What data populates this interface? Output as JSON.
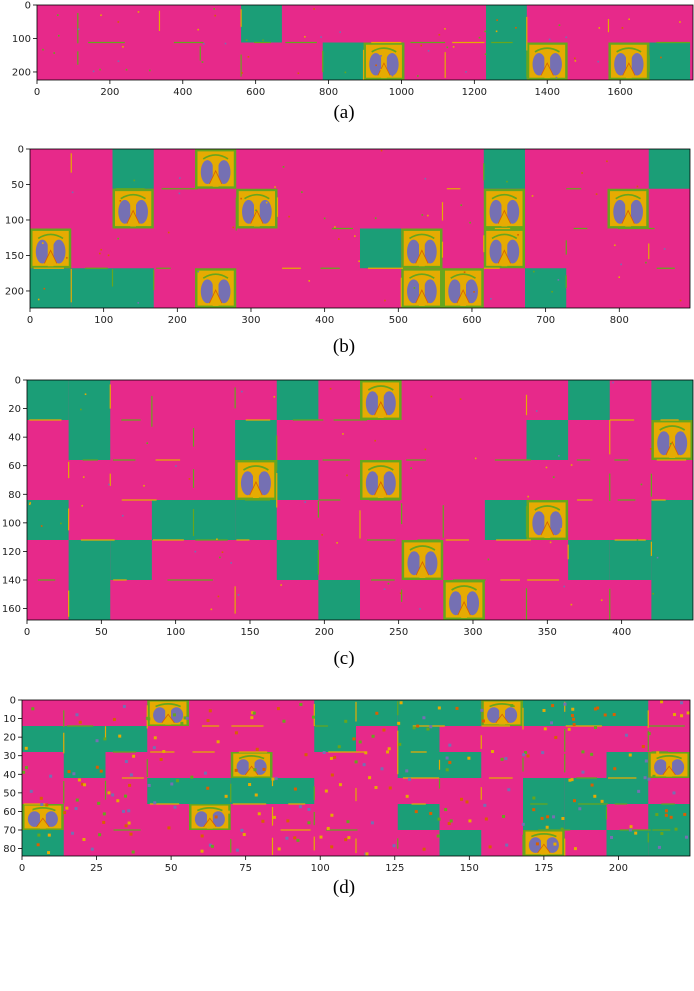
{
  "colors": {
    "background_pink": "#e7298a",
    "teal": "#1b9e77",
    "yellow": "#e6ab02",
    "green": "#66a61e",
    "purple": "#7570b3",
    "orange": "#d95f02"
  },
  "panels": [
    {
      "id": "a",
      "caption": "(a)",
      "xlim": [
        0,
        1800
      ],
      "ylim": [
        0,
        224
      ],
      "x_ticks": [
        0,
        200,
        400,
        600,
        800,
        1000,
        1200,
        1400,
        1600
      ],
      "y_ticks": [
        0,
        100,
        200
      ],
      "x_tick_labels": [
        "0",
        "200",
        "400",
        "600",
        "800",
        "1000",
        "1200",
        "1400",
        "1600"
      ],
      "y_tick_labels": [
        "0",
        "100",
        "200"
      ],
      "cell": [
        112,
        112
      ],
      "grid_cols": 16,
      "grid_rows": 2,
      "teal_cells": [
        [
          5,
          0
        ],
        [
          7,
          1
        ],
        [
          8,
          1
        ],
        [
          11,
          0
        ],
        [
          11,
          1
        ],
        [
          15,
          1
        ]
      ],
      "xray_cells": [
        [
          8,
          1
        ],
        [
          12,
          1
        ],
        [
          14,
          1
        ]
      ]
    },
    {
      "id": "b",
      "caption": "(b)",
      "xlim": [
        0,
        896
      ],
      "ylim": [
        0,
        224
      ],
      "x_ticks": [
        0,
        100,
        200,
        300,
        400,
        500,
        600,
        700,
        800
      ],
      "y_ticks": [
        0,
        50,
        100,
        150,
        200
      ],
      "x_tick_labels": [
        "0",
        "100",
        "200",
        "300",
        "400",
        "500",
        "600",
        "700",
        "800"
      ],
      "y_tick_labels": [
        "0",
        "50",
        "100",
        "150",
        "200"
      ],
      "cell": [
        56,
        56
      ],
      "grid_cols": 16,
      "grid_rows": 4,
      "teal_cells": [
        [
          2,
          0
        ],
        [
          11,
          0
        ],
        [
          15,
          0
        ],
        [
          8,
          2
        ],
        [
          0,
          3
        ],
        [
          1,
          3
        ],
        [
          2,
          3
        ],
        [
          12,
          3
        ]
      ],
      "xray_cells": [
        [
          4,
          0
        ],
        [
          2,
          1
        ],
        [
          5,
          1
        ],
        [
          11,
          1
        ],
        [
          14,
          1
        ],
        [
          0,
          2
        ],
        [
          9,
          2
        ],
        [
          11,
          2
        ],
        [
          4,
          3
        ],
        [
          9,
          3
        ],
        [
          10,
          3
        ]
      ]
    },
    {
      "id": "c",
      "caption": "(c)",
      "xlim": [
        0,
        448
      ],
      "ylim": [
        0,
        168
      ],
      "x_ticks": [
        0,
        50,
        100,
        150,
        200,
        250,
        300,
        350,
        400
      ],
      "y_ticks": [
        0,
        20,
        40,
        60,
        80,
        100,
        120,
        140,
        160
      ],
      "x_tick_labels": [
        "0",
        "50",
        "100",
        "150",
        "200",
        "250",
        "300",
        "350",
        "400"
      ],
      "y_tick_labels": [
        "0",
        "20",
        "40",
        "60",
        "80",
        "100",
        "120",
        "140",
        "160"
      ],
      "cell": [
        28,
        28
      ],
      "grid_cols": 16,
      "grid_rows": 6,
      "teal_cells": [
        [
          0,
          0
        ],
        [
          1,
          0
        ],
        [
          6,
          0
        ],
        [
          13,
          0
        ],
        [
          15,
          0
        ],
        [
          1,
          1
        ],
        [
          5,
          1
        ],
        [
          12,
          1
        ],
        [
          6,
          2
        ],
        [
          0,
          3
        ],
        [
          3,
          3
        ],
        [
          4,
          3
        ],
        [
          5,
          3
        ],
        [
          15,
          3
        ],
        [
          11,
          3
        ],
        [
          1,
          4
        ],
        [
          2,
          4
        ],
        [
          6,
          4
        ],
        [
          13,
          4
        ],
        [
          14,
          4
        ],
        [
          15,
          4
        ],
        [
          1,
          5
        ],
        [
          7,
          5
        ],
        [
          15,
          5
        ]
      ],
      "xray_cells": [
        [
          8,
          0
        ],
        [
          15,
          1
        ],
        [
          5,
          2
        ],
        [
          8,
          2
        ],
        [
          12,
          3
        ],
        [
          9,
          4
        ],
        [
          10,
          5
        ]
      ]
    },
    {
      "id": "d",
      "caption": "(d)",
      "xlim": [
        0,
        224
      ],
      "ylim": [
        0,
        84
      ],
      "x_ticks": [
        0,
        25,
        50,
        75,
        100,
        125,
        150,
        175,
        200
      ],
      "y_ticks": [
        0,
        10,
        20,
        30,
        40,
        50,
        60,
        70,
        80
      ],
      "x_tick_labels": [
        "0",
        "25",
        "50",
        "75",
        "100",
        "125",
        "150",
        "175",
        "200"
      ],
      "y_tick_labels": [
        "0",
        "10",
        "20",
        "30",
        "40",
        "50",
        "60",
        "70",
        "80"
      ],
      "cell": [
        14,
        14
      ],
      "grid_cols": 16,
      "grid_rows": 6,
      "teal_cells": [
        [
          7,
          0
        ],
        [
          8,
          0
        ],
        [
          9,
          0
        ],
        [
          10,
          0
        ],
        [
          12,
          0
        ],
        [
          13,
          0
        ],
        [
          7,
          1
        ],
        [
          9,
          1
        ],
        [
          0,
          1
        ],
        [
          1,
          1
        ],
        [
          2,
          1
        ],
        [
          9,
          2
        ],
        [
          10,
          2
        ],
        [
          3,
          3
        ],
        [
          4,
          3
        ],
        [
          5,
          3
        ],
        [
          6,
          3
        ],
        [
          1,
          2
        ],
        [
          14,
          2
        ],
        [
          12,
          3
        ],
        [
          13,
          3
        ],
        [
          14,
          3
        ],
        [
          12,
          4
        ],
        [
          13,
          4
        ],
        [
          10,
          5
        ],
        [
          0,
          5
        ],
        [
          15,
          4
        ],
        [
          15,
          5
        ],
        [
          9,
          4
        ],
        [
          14,
          5
        ],
        [
          0,
          1
        ],
        [
          13,
          0
        ],
        [
          14,
          0
        ]
      ],
      "xray_cells": [
        [
          3,
          0
        ],
        [
          11,
          0
        ],
        [
          5,
          2
        ],
        [
          15,
          2
        ],
        [
          0,
          4
        ],
        [
          4,
          4
        ],
        [
          12,
          5
        ]
      ]
    }
  ]
}
